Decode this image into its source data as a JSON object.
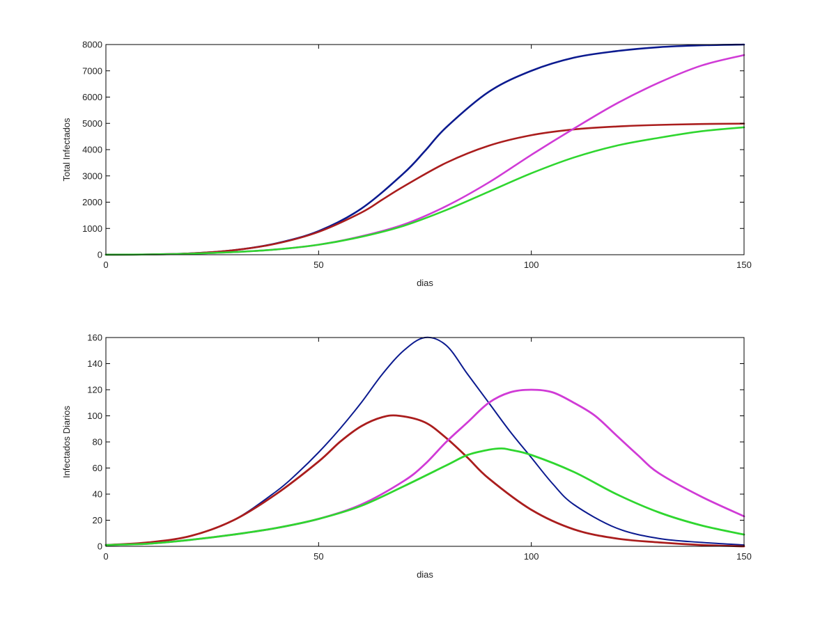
{
  "chart_data": [
    {
      "type": "line",
      "title": "",
      "xlabel": "dias",
      "ylabel": "Total Infectados",
      "xlim": [
        0,
        150
      ],
      "ylim": [
        0,
        8000
      ],
      "xticks": [
        0,
        50,
        100,
        150
      ],
      "yticks": [
        0,
        1000,
        2000,
        3000,
        4000,
        5000,
        6000,
        7000,
        8000
      ],
      "grid": false,
      "series": [
        {
          "color": "#0b1a8f",
          "x": [
            0,
            10,
            20,
            30,
            40,
            50,
            60,
            70,
            75,
            80,
            90,
            100,
            110,
            120,
            130,
            140,
            150
          ],
          "values": [
            2,
            10,
            50,
            170,
            430,
            900,
            1750,
            3100,
            3950,
            4850,
            6200,
            7000,
            7500,
            7750,
            7900,
            7970,
            8000
          ]
        },
        {
          "color": "#aa1d1d",
          "x": [
            0,
            10,
            20,
            30,
            40,
            50,
            60,
            65,
            70,
            80,
            90,
            100,
            110,
            120,
            130,
            140,
            150
          ],
          "values": [
            2,
            10,
            50,
            170,
            420,
            870,
            1600,
            2100,
            2600,
            3500,
            4150,
            4550,
            4770,
            4880,
            4940,
            4975,
            4990
          ]
        },
        {
          "color": "#d03bd6",
          "x": [
            0,
            10,
            20,
            30,
            40,
            50,
            60,
            70,
            80,
            90,
            100,
            110,
            120,
            130,
            140,
            150
          ],
          "values": [
            2,
            10,
            40,
            100,
            200,
            380,
            700,
            1150,
            1850,
            2750,
            3800,
            4800,
            5750,
            6550,
            7200,
            7600
          ]
        },
        {
          "color": "#2fd62f",
          "x": [
            0,
            10,
            20,
            30,
            40,
            50,
            60,
            70,
            80,
            90,
            100,
            110,
            120,
            130,
            140,
            150
          ],
          "values": [
            2,
            10,
            40,
            100,
            200,
            380,
            680,
            1100,
            1700,
            2400,
            3100,
            3700,
            4150,
            4450,
            4700,
            4850
          ]
        }
      ]
    },
    {
      "type": "line",
      "title": "",
      "xlabel": "dias",
      "ylabel": "Infectados Diarios",
      "xlim": [
        0,
        150
      ],
      "ylim": [
        0,
        160
      ],
      "xticks": [
        0,
        50,
        100,
        150
      ],
      "yticks": [
        0,
        20,
        40,
        60,
        80,
        100,
        120,
        140,
        160
      ],
      "grid": false,
      "series": [
        {
          "color": "#0b1a8f",
          "x": [
            0,
            10,
            20,
            30,
            40,
            45,
            50,
            55,
            60,
            65,
            70,
            75,
            80,
            85,
            90,
            95,
            100,
            105,
            110,
            120,
            130,
            140,
            150
          ],
          "values": [
            1,
            3,
            8,
            20,
            42,
            56,
            72,
            90,
            110,
            132,
            150,
            160,
            154,
            132,
            110,
            88,
            68,
            48,
            32,
            14,
            6,
            3,
            1
          ]
        },
        {
          "color": "#aa1d1d",
          "x": [
            0,
            10,
            20,
            30,
            40,
            50,
            55,
            60,
            65,
            69,
            75,
            80,
            85,
            90,
            100,
            110,
            120,
            130,
            140,
            150
          ],
          "values": [
            1,
            3,
            8,
            20,
            40,
            65,
            80,
            92,
            99,
            100,
            95,
            83,
            68,
            52,
            28,
            13,
            6,
            3,
            1,
            0
          ]
        },
        {
          "color": "#d03bd6",
          "x": [
            0,
            10,
            20,
            30,
            40,
            50,
            60,
            70,
            75,
            80,
            85,
            90,
            95,
            100,
            105,
            110,
            115,
            120,
            125,
            130,
            140,
            150
          ],
          "values": [
            1,
            2,
            5,
            9,
            14,
            21,
            32,
            50,
            63,
            80,
            95,
            110,
            118,
            120,
            118,
            110,
            100,
            85,
            70,
            56,
            38,
            23
          ]
        },
        {
          "color": "#2fd62f",
          "x": [
            0,
            10,
            20,
            30,
            40,
            50,
            60,
            70,
            80,
            85,
            90,
            93,
            95,
            100,
            110,
            120,
            130,
            140,
            150
          ],
          "values": [
            1,
            2,
            5,
            9,
            14,
            21,
            31,
            46,
            62,
            70,
            74,
            75,
            74,
            70,
            57,
            40,
            26,
            16,
            9
          ]
        }
      ]
    }
  ]
}
